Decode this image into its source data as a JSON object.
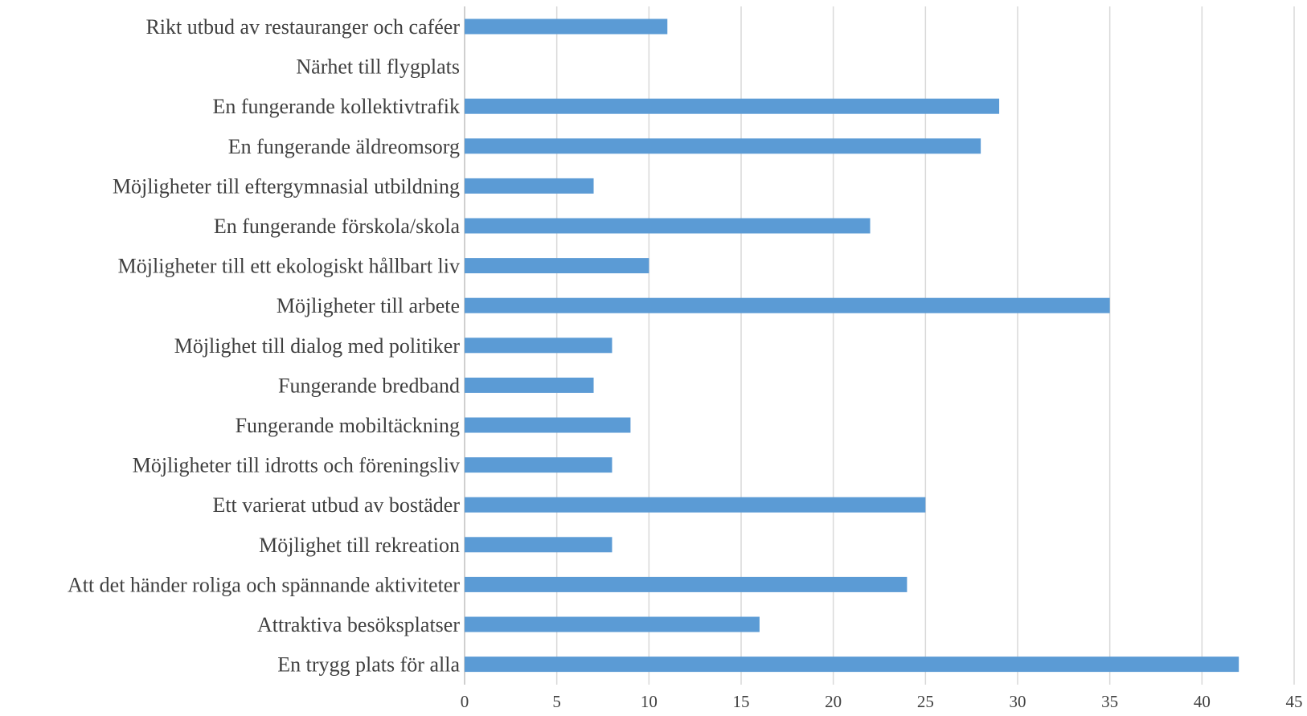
{
  "chart_data": {
    "type": "bar",
    "orientation": "horizontal",
    "categories": [
      "Rikt utbud av restauranger och caféer",
      "Närhet till flygplats",
      "En fungerande kollektivtrafik",
      "En fungerande äldreomsorg",
      "Möjligheter till eftergymnasial utbildning",
      "En fungerande förskola/skola",
      "Möjligheter till ett ekologiskt hållbart liv",
      "Möjligheter till arbete",
      "Möjlighet till dialog med politiker",
      "Fungerande bredband",
      "Fungerande mobiltäckning",
      "Möjligheter till idrotts och föreningsliv",
      "Ett varierat utbud av bostäder",
      "Möjlighet till rekreation",
      "Att det händer roliga och spännande aktiviteter",
      "Attraktiva besöksplatser",
      "En trygg plats för alla"
    ],
    "values": [
      11,
      0,
      29,
      28,
      7,
      22,
      10,
      35,
      8,
      7,
      9,
      8,
      25,
      8,
      24,
      16,
      42
    ],
    "xlim": [
      0,
      45
    ],
    "xticks": [
      "0",
      "5",
      "10",
      "15",
      "20",
      "25",
      "30",
      "35",
      "40",
      "45"
    ],
    "grid": "vertical",
    "legend": "none",
    "title": "",
    "xlabel": "",
    "ylabel": "",
    "colors": {
      "bar": "#5b9bd5",
      "grid": "#d9d9d9",
      "text": "#404040"
    }
  }
}
